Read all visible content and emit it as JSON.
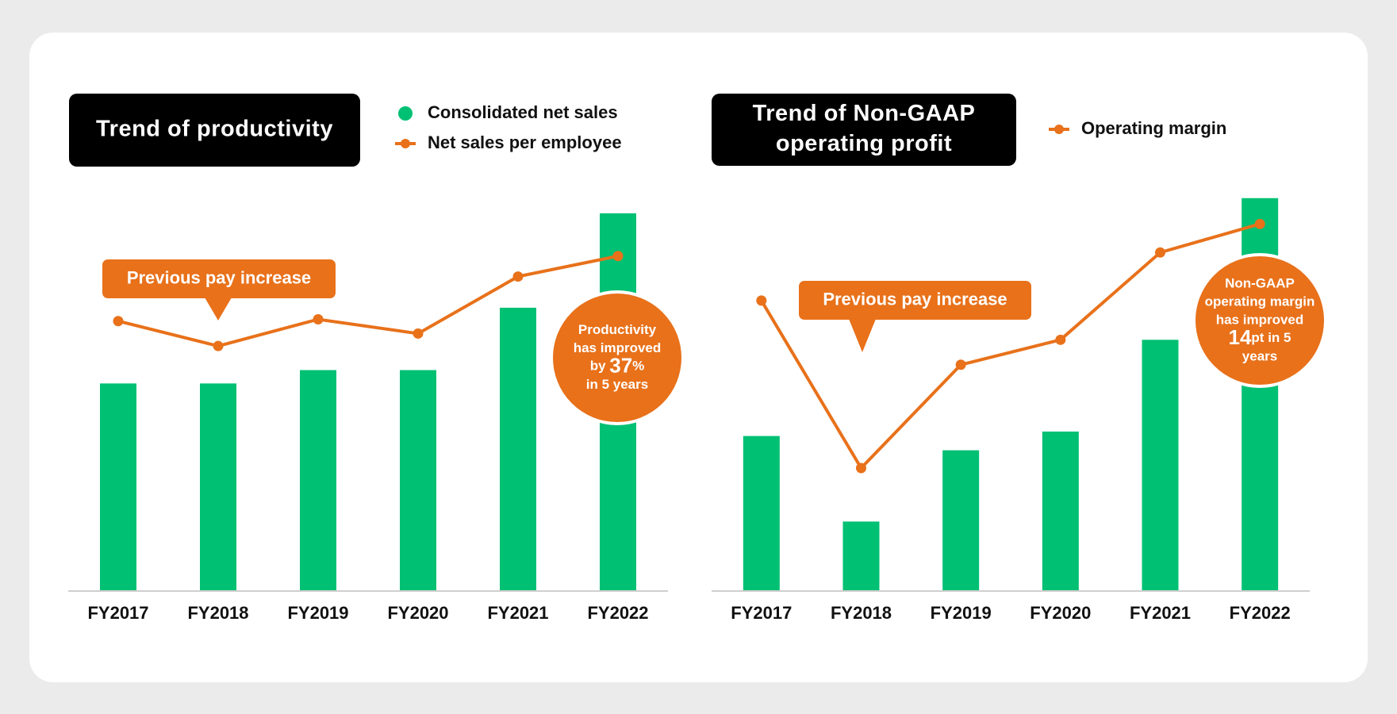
{
  "chart_data": [
    {
      "type": "bar_line",
      "title": [
        "Trend of productivity"
      ],
      "categories": [
        "FY2017",
        "FY2018",
        "FY2019",
        "FY2020",
        "FY2021",
        "FY2022"
      ],
      "series": [
        {
          "name": "Consolidated net sales",
          "color": "#00c073",
          "kind": "bar",
          "values": [
            233,
            233,
            248,
            248,
            318,
            424
          ]
        },
        {
          "name": "Net sales per employee",
          "color": "#e8711a",
          "kind": "line",
          "values": [
            303,
            275,
            305,
            289,
            353,
            376
          ]
        }
      ],
      "ylim": [
        0,
        450
      ],
      "pay_callout": "Previous pay increase",
      "circle_callout": {
        "before": [
          "Productivity",
          "has improved"
        ],
        "highlight_before": "by ",
        "highlight": "37",
        "highlight_after": "%",
        "after": [
          "in 5 years"
        ]
      }
    },
    {
      "type": "bar_line",
      "title": [
        "Trend of Non-GAAP",
        "operating profit"
      ],
      "categories": [
        "FY2017",
        "FY2018",
        "FY2019",
        "FY2020",
        "FY2021",
        "FY2022"
      ],
      "series": [
        {
          "color": "#00c073",
          "kind": "bar",
          "values": [
            174,
            78,
            158,
            179,
            282,
            441
          ]
        },
        {
          "name": "Operating margin",
          "color": "#e8711a",
          "kind": "line",
          "values": [
            326,
            138,
            254,
            282,
            380,
            412
          ]
        }
      ],
      "ylim": [
        0,
        450
      ],
      "pay_callout": "Previous pay increase",
      "circle_callout": {
        "before": [
          "Non-GAAP",
          "operating margin",
          "has improved"
        ],
        "highlight_before": "",
        "highlight": "14",
        "highlight_after": "pt in 5",
        "after": [
          "years"
        ]
      }
    }
  ]
}
